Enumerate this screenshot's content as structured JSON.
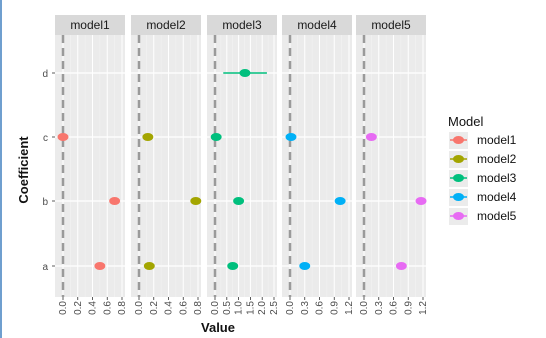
{
  "chart_data": {
    "type": "scatter",
    "subtype": "faceted coefficient dot plot with confidence intervals",
    "xlabel": "Value",
    "ylabel": "Coefficient",
    "y_categories": [
      "a",
      "b",
      "c",
      "d"
    ],
    "reference_line": {
      "x": 0,
      "style": "dashed"
    },
    "grid": true,
    "legend_title": "Model",
    "legend_position": "right",
    "series": [
      {
        "name": "model1",
        "color": "#F8766D",
        "xlim": [
          0,
          0.8
        ],
        "ticks": [
          "0.0",
          "0.2",
          "0.4",
          "0.6",
          "0.8"
        ],
        "points": [
          {
            "y": "a",
            "x": 0.5,
            "lo": 0.46,
            "hi": 0.54
          },
          {
            "y": "b",
            "x": 0.7,
            "lo": 0.66,
            "hi": 0.74
          },
          {
            "y": "c",
            "x": 0.0,
            "lo": -0.03,
            "hi": 0.03
          }
        ]
      },
      {
        "name": "model2",
        "color": "#A3A500",
        "xlim": [
          0,
          0.8
        ],
        "ticks": [
          "0.0",
          "0.2",
          "0.4",
          "0.6",
          "0.8"
        ],
        "points": [
          {
            "y": "a",
            "x": 0.14,
            "lo": 0.1,
            "hi": 0.18
          },
          {
            "y": "b",
            "x": 0.77,
            "lo": 0.73,
            "hi": 0.81
          },
          {
            "y": "c",
            "x": 0.12,
            "lo": 0.08,
            "hi": 0.16
          }
        ]
      },
      {
        "name": "model3",
        "color": "#00BF7D",
        "xlim": [
          0,
          2.5
        ],
        "ticks": [
          "0.0",
          "0.5",
          "1.0",
          "1.5",
          "2.0",
          "2.5"
        ],
        "points": [
          {
            "y": "a",
            "x": 0.75,
            "lo": 0.63,
            "hi": 0.87
          },
          {
            "y": "b",
            "x": 1.0,
            "lo": 0.88,
            "hi": 1.12
          },
          {
            "y": "c",
            "x": 0.05,
            "lo": -0.07,
            "hi": 0.17
          },
          {
            "y": "d",
            "x": 1.27,
            "lo": 0.35,
            "hi": 2.2
          }
        ]
      },
      {
        "name": "model4",
        "color": "#00B0F6",
        "xlim": [
          0,
          1.2
        ],
        "ticks": [
          "0.0",
          "0.3",
          "0.6",
          "0.9",
          "1.2"
        ],
        "points": [
          {
            "y": "a",
            "x": 0.3,
            "lo": 0.24,
            "hi": 0.36
          },
          {
            "y": "b",
            "x": 1.02,
            "lo": 0.96,
            "hi": 1.08
          },
          {
            "y": "c",
            "x": 0.02,
            "lo": -0.04,
            "hi": 0.08
          }
        ]
      },
      {
        "name": "model5",
        "color": "#E76BF3",
        "xlim": [
          0,
          1.2
        ],
        "ticks": [
          "0.0",
          "0.3",
          "0.6",
          "0.9",
          "1.2"
        ],
        "points": [
          {
            "y": "a",
            "x": 0.76,
            "lo": 0.7,
            "hi": 0.82
          },
          {
            "y": "b",
            "x": 1.16,
            "lo": 1.1,
            "hi": 1.22
          },
          {
            "y": "c",
            "x": 0.15,
            "lo": 0.09,
            "hi": 0.21
          }
        ]
      }
    ]
  }
}
